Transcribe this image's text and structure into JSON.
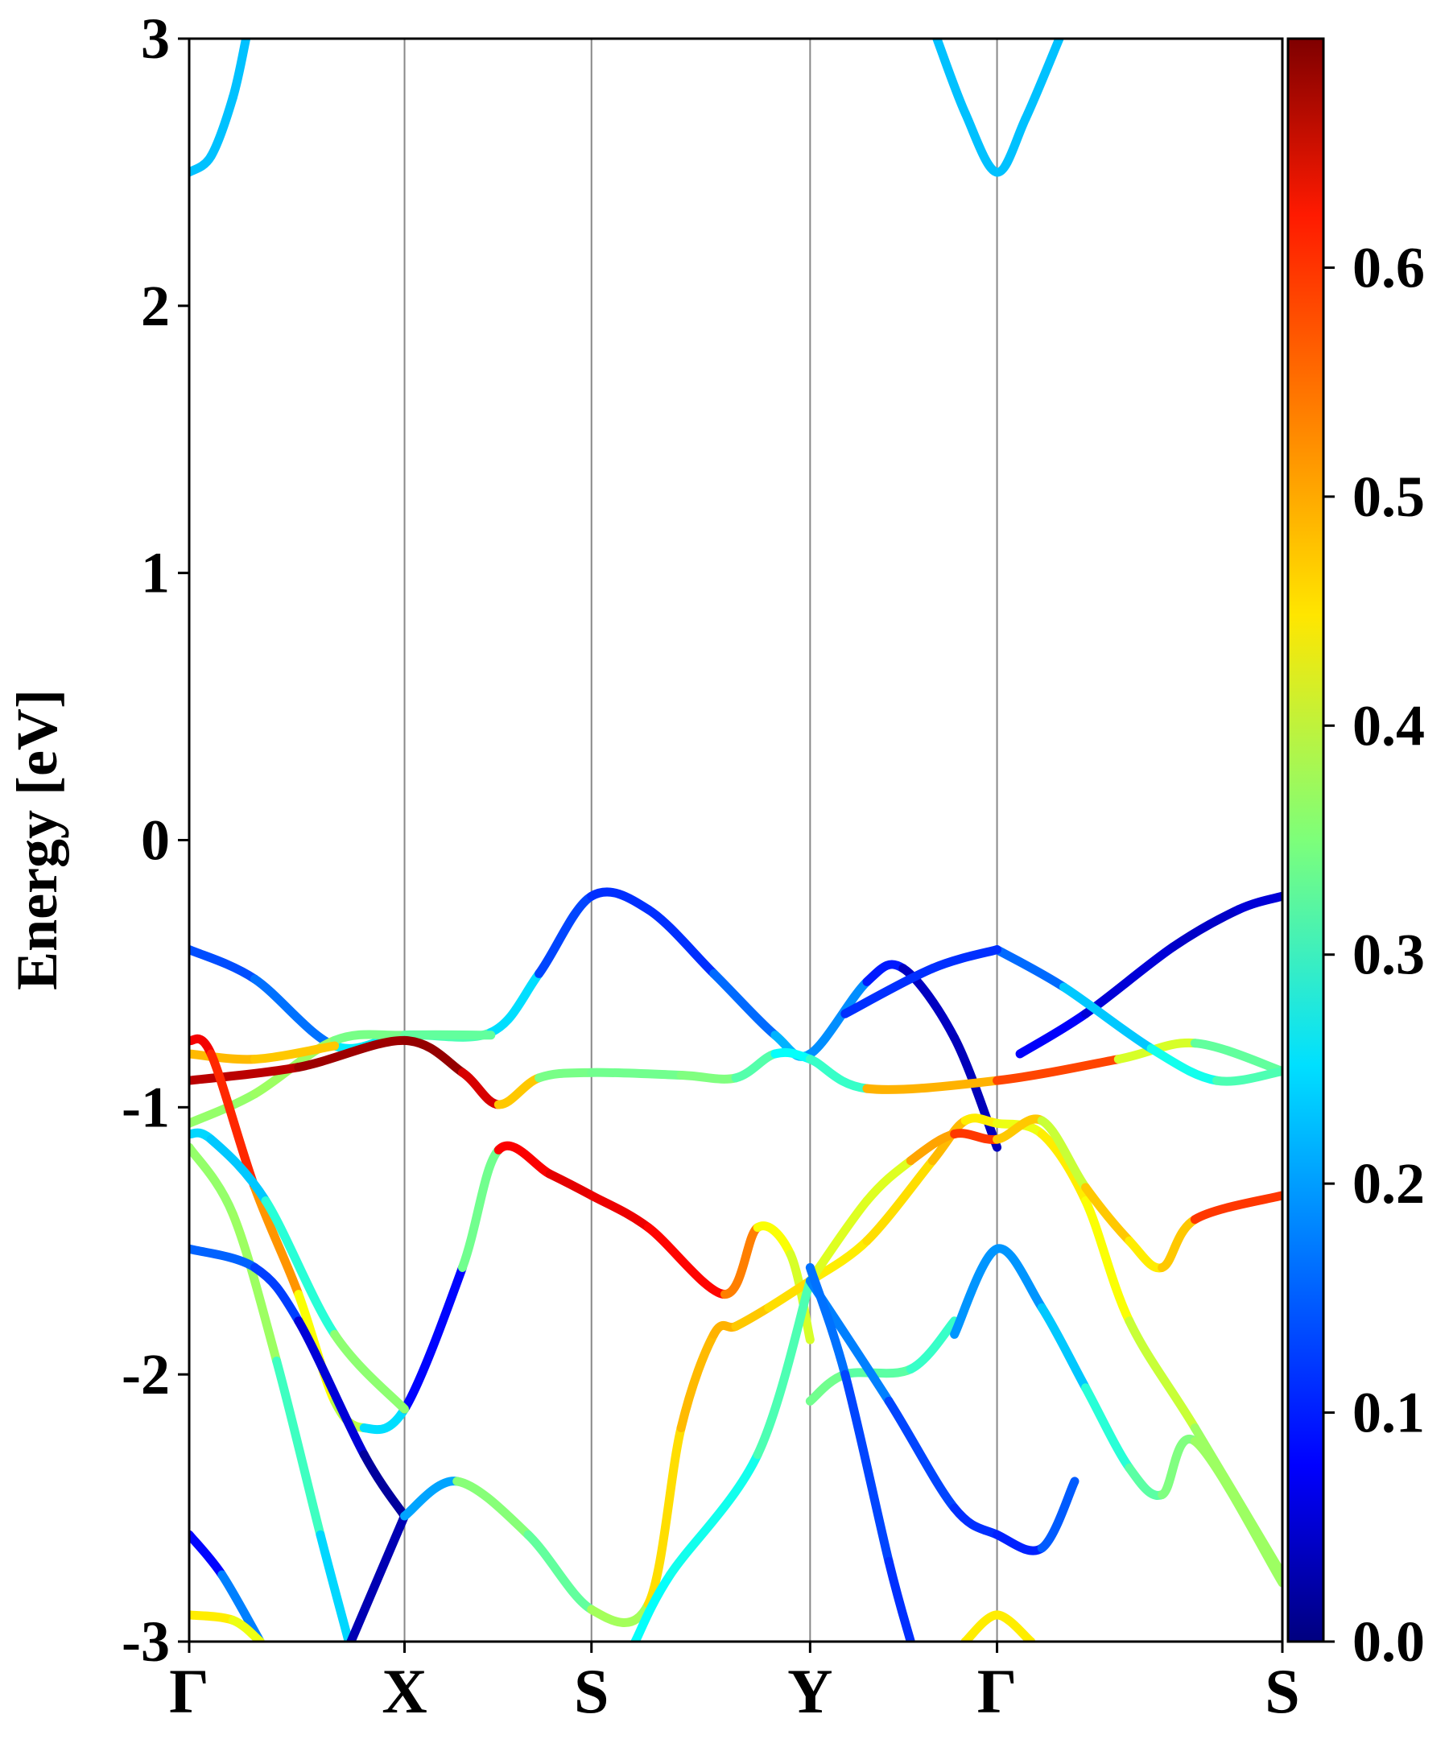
{
  "chart_data": {
    "type": "band-structure",
    "ylabel": "Energy [eV]",
    "xlim": [
      0,
      1
    ],
    "xticks": [
      {
        "value": 0,
        "label": "Γ"
      },
      {
        "value": 0.197,
        "label": "X"
      },
      {
        "value": 0.368,
        "label": "S"
      },
      {
        "value": 0.568,
        "label": "Y"
      },
      {
        "value": 0.739,
        "label": "Γ"
      },
      {
        "value": 1.0,
        "label": "S"
      }
    ],
    "ylim": [
      -3,
      3
    ],
    "yticks": [
      -3,
      -2,
      -1,
      0,
      1,
      2,
      3
    ],
    "grid": true,
    "colormap": "jet",
    "clim": [
      0,
      0.7
    ],
    "cticks": [
      {
        "value": 0,
        "label": "0.0"
      },
      {
        "value": 0.1,
        "label": "0.1"
      },
      {
        "value": 0.2,
        "label": "0.2"
      },
      {
        "value": 0.3,
        "label": "0.3"
      },
      {
        "value": 0.4,
        "label": "0.4"
      },
      {
        "value": 0.5,
        "label": "0.5"
      },
      {
        "value": 0.6,
        "label": "0.6"
      }
    ],
    "bands": [
      {
        "x": [
          0,
          0.02,
          0.04,
          0.052
        ],
        "values": [
          2.5,
          2.56,
          2.78,
          3.0
        ],
        "weights": [
          0.22,
          0.22,
          0.22,
          0.22
        ]
      },
      {
        "x": [
          0.684,
          0.71,
          0.739,
          0.765,
          0.796
        ],
        "values": [
          3.0,
          2.72,
          2.5,
          2.7,
          3.0
        ],
        "weights": [
          0.22,
          0.22,
          0.22,
          0.22,
          0.22
        ]
      },
      {
        "x": [
          0,
          0.06,
          0.133,
          0.197,
          0.276,
          0.32,
          0.368,
          0.42,
          0.48,
          0.536,
          0.568,
          0.62,
          0.653,
          0.7,
          0.739
        ],
        "values": [
          -0.41,
          -0.52,
          -0.77,
          -0.73,
          -0.72,
          -0.5,
          -0.21,
          -0.26,
          -0.5,
          -0.73,
          -0.8,
          -0.53,
          -0.48,
          -0.74,
          -1.15
        ],
        "weights": [
          0.15,
          0.13,
          0.2,
          0.3,
          0.33,
          0.15,
          0.12,
          0.12,
          0.12,
          0.2,
          0.22,
          0.15,
          0.06,
          0.03,
          0.05
        ]
      },
      {
        "x": [
          0,
          0.06,
          0.133,
          0.197,
          0.276
        ],
        "values": [
          -1.06,
          -0.95,
          -0.75,
          -0.73,
          -0.73
        ],
        "weights": [
          0.35,
          0.38,
          0.36,
          0.33,
          0.33
        ]
      },
      {
        "x": [
          0,
          0.1,
          0.197,
          0.25,
          0.283,
          0.32,
          0.368,
          0.45,
          0.5,
          0.536,
          0.568,
          0.62,
          0.739,
          0.85,
          0.92,
          1.0
        ],
        "values": [
          -0.9,
          -0.85,
          -0.75,
          -0.87,
          -0.99,
          -0.89,
          -0.87,
          -0.88,
          -0.89,
          -0.8,
          -0.82,
          -0.93,
          -0.9,
          -0.82,
          -0.76,
          -0.865
        ],
        "weights": [
          0.65,
          0.67,
          0.69,
          0.68,
          0.6,
          0.35,
          0.34,
          0.34,
          0.36,
          0.28,
          0.25,
          0.35,
          0.63,
          0.5,
          0.32,
          0.34
        ]
      },
      {
        "x": [
          0,
          0.06,
          0.133
        ],
        "values": [
          -0.8,
          -0.82,
          -0.77
        ],
        "weights": [
          0.47,
          0.5,
          0.45
        ]
      },
      {
        "x": [
          0,
          0.02,
          0.06,
          0.1,
          0.133,
          0.16,
          0.197,
          0.25,
          0.283,
          0.33,
          0.368,
          0.42,
          0.49,
          0.52,
          0.55,
          0.568
        ],
        "values": [
          -0.75,
          -0.8,
          -1.3,
          -1.7,
          -2.1,
          -2.2,
          -2.13,
          -1.6,
          -1.16,
          -1.25,
          -1.33,
          -1.45,
          -1.7,
          -1.45,
          -1.55,
          -1.87
        ],
        "weights": [
          0.62,
          0.62,
          0.55,
          0.47,
          0.4,
          0.38,
          0.1,
          0.08,
          0.6,
          0.63,
          0.63,
          0.62,
          0.6,
          0.45,
          0.42,
          0.4
        ]
      },
      {
        "x": [
          0,
          0.04,
          0.08,
          0.12,
          0.146
        ],
        "values": [
          -1.15,
          -1.4,
          -1.95,
          -2.6,
          -3.0
        ],
        "weights": [
          0.35,
          0.38,
          0.36,
          0.25,
          0.22
        ]
      },
      {
        "x": [
          0,
          0.02,
          0.07,
          0.133,
          0.197
        ],
        "values": [
          -1.1,
          -1.12,
          -1.35,
          -1.85,
          -2.13
        ],
        "weights": [
          0.25,
          0.22,
          0.23,
          0.35,
          0.37
        ]
      },
      {
        "x": [
          0,
          0.06,
          0.1,
          0.16,
          0.197
        ],
        "values": [
          -1.53,
          -1.6,
          -1.8,
          -2.3,
          -2.53
        ],
        "weights": [
          0.15,
          0.16,
          0.1,
          0.02,
          0.02
        ]
      },
      {
        "x": [
          0.148,
          0.197
        ],
        "values": [
          -3.0,
          -2.53
        ],
        "weights": [
          0.02,
          0.05
        ]
      },
      {
        "x": [
          0.197,
          0.245,
          0.31,
          0.368,
          0.42,
          0.45,
          0.48,
          0.5,
          0.53,
          0.568
        ],
        "values": [
          -2.53,
          -2.4,
          -2.6,
          -2.88,
          -2.86,
          -2.2,
          -1.85,
          -1.82,
          -1.75,
          -1.65
        ],
        "weights": [
          0.05,
          0.35,
          0.36,
          0.3,
          0.45,
          0.47,
          0.5,
          0.48,
          0.47,
          0.45
        ]
      },
      {
        "x": [
          0.408,
          0.44,
          0.52,
          0.568
        ],
        "values": [
          -3.0,
          -2.75,
          -2.3,
          -1.65
        ],
        "weights": [
          0.26,
          0.27,
          0.28,
          0.35
        ]
      },
      {
        "x": [
          0.568,
          0.62,
          0.68,
          0.71,
          0.739,
          0.78,
          0.82,
          0.86,
          0.92,
          1.0
        ],
        "values": [
          -1.65,
          -1.5,
          -1.2,
          -1.05,
          -1.06,
          -1.1,
          -1.35,
          -1.8,
          -2.2,
          -2.75
        ],
        "weights": [
          0.45,
          0.45,
          0.47,
          0.5,
          0.4,
          0.45,
          0.45,
          0.42,
          0.38,
          0.36
        ]
      },
      {
        "x": [
          0.568,
          0.62,
          0.66,
          0.7,
          0.739,
          0.78,
          0.82,
          0.86,
          0.89,
          0.92,
          1.0
        ],
        "values": [
          -1.65,
          -1.35,
          -1.2,
          -1.1,
          -1.12,
          -1.05,
          -1.3,
          -1.5,
          -1.6,
          -1.42,
          -1.33
        ],
        "weights": [
          0.45,
          0.38,
          0.45,
          0.55,
          0.6,
          0.35,
          0.45,
          0.5,
          0.4,
          0.55,
          0.6
        ]
      },
      {
        "x": [
          0.568,
          0.6,
          0.66,
          0.7
        ],
        "values": [
          -2.1,
          -2.0,
          -1.98,
          -1.8
        ],
        "weights": [
          0.38,
          0.3,
          0.35,
          0.25
        ]
      },
      {
        "x": [
          0.568,
          0.64,
          0.7,
          0.739,
          0.78,
          0.81
        ],
        "values": [
          -1.65,
          -2.1,
          -2.5,
          -2.6,
          -2.65,
          -2.4
        ],
        "weights": [
          0.2,
          0.15,
          0.12,
          0.12,
          0.1,
          0.2
        ]
      },
      {
        "x": [
          0.568,
          0.6,
          0.64,
          0.66
        ],
        "values": [
          -1.6,
          -2.0,
          -2.7,
          -3.0
        ],
        "weights": [
          0.18,
          0.15,
          0.12,
          0.12
        ]
      },
      {
        "x": [
          0.7,
          0.739,
          0.78,
          0.82,
          0.86,
          0.89,
          0.92,
          1.0
        ],
        "values": [
          -1.85,
          -1.53,
          -1.75,
          -2.05,
          -2.35,
          -2.45,
          -2.25,
          -2.78
        ],
        "weights": [
          0.2,
          0.18,
          0.2,
          0.25,
          0.33,
          0.32,
          0.38,
          0.36
        ]
      },
      {
        "x": [
          0,
          0.03,
          0.065
        ],
        "values": [
          -2.6,
          -2.75,
          -3.0
        ],
        "weights": [
          0.08,
          0.1,
          0.25
        ]
      },
      {
        "x": [
          0,
          0.04,
          0.065
        ],
        "values": [
          -2.9,
          -2.92,
          -3.0
        ],
        "weights": [
          0.45,
          0.45,
          0.4
        ]
      },
      {
        "x": [
          0.71,
          0.739,
          0.77
        ],
        "values": [
          -3.0,
          -2.9,
          -3.0
        ],
        "weights": [
          0.45,
          0.45,
          0.45
        ]
      },
      {
        "x": [
          0.76,
          0.82,
          0.9,
          0.96,
          1.0
        ],
        "values": [
          -0.8,
          -0.65,
          -0.4,
          -0.26,
          -0.21
        ],
        "weights": [
          0.1,
          0.07,
          0.05,
          0.05,
          0.07
        ]
      },
      {
        "x": [
          0.739,
          0.8,
          0.88,
          0.94,
          1.0
        ],
        "values": [
          -0.41,
          -0.55,
          -0.78,
          -0.9,
          -0.865
        ],
        "weights": [
          0.12,
          0.2,
          0.25,
          0.3,
          0.33
        ]
      },
      {
        "x": [
          0.6,
          0.68,
          0.739
        ],
        "values": [
          -0.65,
          -0.48,
          -0.41
        ],
        "weights": [
          0.12,
          0.12,
          0.12
        ]
      }
    ]
  }
}
